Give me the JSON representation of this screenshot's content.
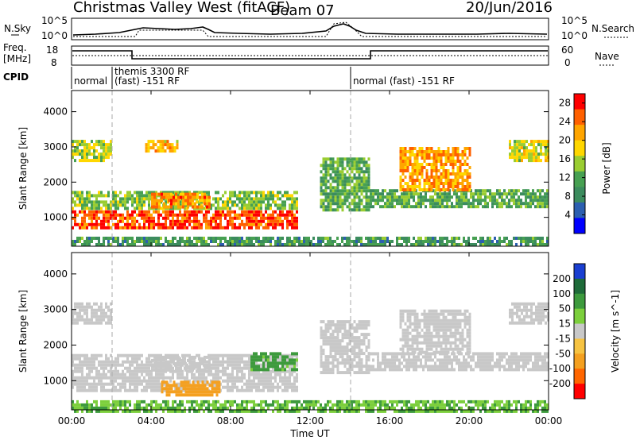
{
  "header": {
    "title": "Christmas Valley West (fitACF)",
    "beam": "Beam 07",
    "date": "20/Jun/2016"
  },
  "top_panels": {
    "nsky_label": "N.Sky",
    "nsky_ticks": [
      "10^5",
      "10^0"
    ],
    "nsearch_label": "N.Search",
    "freq_label_1": "Freq.",
    "freq_label_2": "[MHz]",
    "freq_ticks": [
      "18",
      "8"
    ],
    "nave_label": "Nave",
    "nave_ticks": [
      "60",
      "0"
    ],
    "cpid_label": "CPID",
    "cpid_segments": [
      {
        "text_1": "normal",
        "text_2": ""
      },
      {
        "text_1": "themis 3300 RF",
        "text_2": "(fast) -151 RF"
      },
      {
        "text_1": "normal (fast) -151 RF",
        "text_2": ""
      }
    ]
  },
  "colors": {
    "power": [
      "#0000ff",
      "#2c5fb0",
      "#3c8c5e",
      "#47a052",
      "#9acd32",
      "#ffd700",
      "#ffa500",
      "#ff6000",
      "#ff0000"
    ],
    "velocity": [
      "#1a3fd1",
      "#1f6b3a",
      "#3d9a3d",
      "#7ccf3c",
      "#c8c8c8",
      "#f6c342",
      "#f4a020",
      "#ff6600",
      "#ff0000"
    ]
  },
  "chart_data": [
    {
      "type": "heatmap",
      "quantity": "Power",
      "ylabel": "Slant Range [km]",
      "xlabel": "",
      "x_ticks": [
        "00:00",
        "04:00",
        "08:00",
        "12:00",
        "16:00",
        "20:00",
        "00:00"
      ],
      "y_ticks": [
        1000,
        2000,
        3000,
        4000
      ],
      "colorbar_label": "Power [dB]",
      "colorbar_ticks": [
        4,
        8,
        12,
        16,
        20,
        24,
        28
      ],
      "colorbar_range": [
        0,
        30
      ],
      "regions": [
        {
          "t0": 0.0,
          "t1": 11.4,
          "r0": 700,
          "r1": 1200,
          "value": 26
        },
        {
          "t0": 0.0,
          "t1": 11.4,
          "r0": 1250,
          "r1": 1750,
          "value": 14
        },
        {
          "t0": 0.0,
          "t1": 2.0,
          "r0": 2600,
          "r1": 3200,
          "value": 16
        },
        {
          "t0": 4.0,
          "t1": 7.0,
          "r0": 1300,
          "r1": 1700,
          "value": 23
        },
        {
          "t0": 3.7,
          "t1": 5.3,
          "r0": 2900,
          "r1": 3200,
          "value": 20
        },
        {
          "t0": 12.5,
          "t1": 15.0,
          "r0": 1200,
          "r1": 2700,
          "value": 12
        },
        {
          "t0": 15.0,
          "t1": 24.0,
          "r0": 1300,
          "r1": 1800,
          "value": 12
        },
        {
          "t0": 16.5,
          "t1": 20.0,
          "r0": 1800,
          "r1": 3000,
          "value": 22
        },
        {
          "t0": 22.0,
          "t1": 24.0,
          "r0": 2600,
          "r1": 3200,
          "value": 17
        },
        {
          "t0": 0.0,
          "t1": 24.0,
          "r0": 180,
          "r1": 450,
          "value": 10
        }
      ]
    },
    {
      "type": "heatmap",
      "quantity": "Velocity",
      "ylabel": "Slant Range [km]",
      "xlabel": "Time UT",
      "x_ticks": [
        "00:00",
        "04:00",
        "08:00",
        "12:00",
        "16:00",
        "20:00",
        "00:00"
      ],
      "y_ticks": [
        1000,
        2000,
        3000,
        4000
      ],
      "colorbar_label": "Velocity [m s^-1]",
      "colorbar_ticks": [
        200,
        100,
        50,
        15,
        -15,
        -50,
        -100,
        -200
      ],
      "regions": [
        {
          "t0": 0.0,
          "t1": 11.4,
          "r0": 700,
          "r1": 1750,
          "value": 0
        },
        {
          "t0": 4.0,
          "t1": 7.0,
          "r0": 1300,
          "r1": 1700,
          "value": 0
        },
        {
          "t0": 4.5,
          "t1": 7.5,
          "r0": 600,
          "r1": 1000,
          "value": -60
        },
        {
          "t0": 9.0,
          "t1": 11.4,
          "r0": 1300,
          "r1": 1800,
          "value": 40
        },
        {
          "t0": 0.0,
          "t1": 2.0,
          "r0": 2600,
          "r1": 3200,
          "value": 0
        },
        {
          "t0": 12.5,
          "t1": 15.0,
          "r0": 1200,
          "r1": 2700,
          "value": 0
        },
        {
          "t0": 15.0,
          "t1": 24.0,
          "r0": 1300,
          "r1": 1800,
          "value": 0
        },
        {
          "t0": 16.5,
          "t1": 20.0,
          "r0": 1800,
          "r1": 3000,
          "value": 0
        },
        {
          "t0": 22.0,
          "t1": 24.0,
          "r0": 2600,
          "r1": 3200,
          "value": 0
        },
        {
          "t0": 0.0,
          "t1": 24.0,
          "r0": 180,
          "r1": 450,
          "value": 30
        }
      ]
    }
  ]
}
